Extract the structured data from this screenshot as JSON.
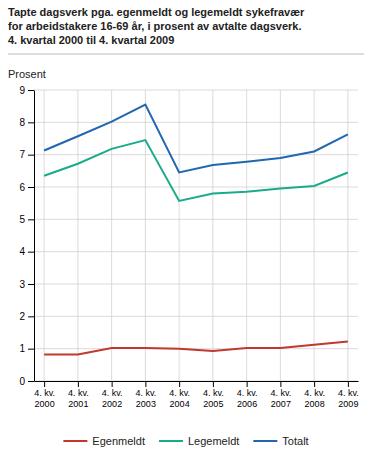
{
  "chart_data": {
    "type": "line",
    "title": "Tapte dagsverk pga. egenmeldt og legemeldt sykefravær\nfor arbeidstakere 16-69 år, i prosent av avtalte dagsverk.\n4. kvartal 2000 til 4. kvartal 2009",
    "ylabel": "Prosent",
    "categories": [
      "4. kv.\n2000",
      "4. kv.\n2001",
      "4. kv.\n2002",
      "4. kv.\n2003",
      "4. kv.\n2004",
      "4. kv.\n2005",
      "4. kv.\n2006",
      "4. kv.\n2007",
      "4. kv.\n2008",
      "4. kv.\n2009"
    ],
    "series": [
      {
        "name": "Egenmeldt",
        "color": "#c0392b",
        "values": [
          0.82,
          0.82,
          1.02,
          1.02,
          1.0,
          0.93,
          1.02,
          1.02,
          1.12,
          1.22
        ]
      },
      {
        "name": "Legemeldt",
        "color": "#1aab8a",
        "values": [
          6.35,
          6.72,
          7.18,
          7.45,
          5.57,
          5.8,
          5.85,
          5.95,
          6.03,
          6.45
        ]
      },
      {
        "name": "Totalt",
        "color": "#2166b0",
        "values": [
          7.13,
          7.57,
          8.02,
          8.55,
          6.45,
          6.68,
          6.78,
          6.9,
          7.1,
          7.63
        ]
      }
    ],
    "ylim": [
      0,
      9
    ],
    "yticks": [
      0,
      1,
      2,
      3,
      4,
      5,
      6,
      7,
      8,
      9
    ],
    "grid": true,
    "legend": "bottom"
  }
}
